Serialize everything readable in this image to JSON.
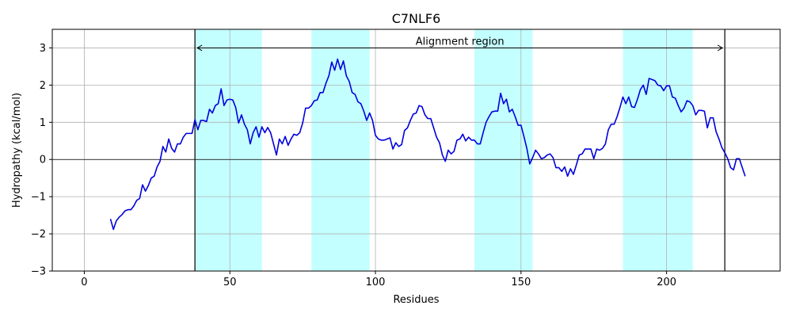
{
  "chart_data": {
    "type": "line",
    "title": "C7NLF6",
    "xlabel": "Residues",
    "ylabel": "Hydropathy (kcal/mol)",
    "xlim": [
      -11,
      239
    ],
    "ylim": [
      -3,
      3.5
    ],
    "xticks": [
      0,
      50,
      100,
      150,
      200
    ],
    "yticks": [
      -3,
      -2,
      -1,
      0,
      1,
      2,
      3
    ],
    "grid": true,
    "colors": {
      "line": "#0000dd",
      "band": "#c4ffff",
      "frame": "#000000",
      "grid": "#b0b0b0"
    },
    "highlight_regions": [
      [
        38,
        61
      ],
      [
        78,
        98
      ],
      [
        134,
        154
      ],
      [
        185,
        209
      ]
    ],
    "alignment": {
      "label": "Alignment region",
      "start": 38,
      "end": 220,
      "y": 3.0
    },
    "series": [
      {
        "x": [
          9,
          10,
          11,
          12,
          13,
          14,
          15,
          16,
          17,
          18,
          19,
          20,
          21,
          22,
          23,
          24,
          25,
          26,
          27,
          28,
          29,
          30,
          31,
          32,
          33,
          34,
          35,
          36,
          37,
          38,
          39,
          40,
          41,
          42,
          43,
          44,
          45,
          46,
          47,
          48,
          49,
          50,
          51,
          52,
          53,
          54,
          55,
          56,
          57,
          58,
          59,
          60,
          61,
          62,
          63,
          64,
          65,
          66,
          67,
          68,
          69,
          70,
          71,
          72,
          73,
          74,
          75,
          76,
          77,
          78,
          79,
          80,
          81,
          82,
          83,
          84,
          85,
          86,
          87,
          88,
          89,
          90,
          91,
          92,
          93,
          94,
          95,
          96,
          97,
          98,
          99,
          100,
          101,
          102,
          103,
          104,
          105,
          106,
          107,
          108,
          109,
          110,
          111,
          112,
          113,
          114,
          115,
          116,
          117,
          118,
          119,
          120,
          121,
          122,
          123,
          124,
          125,
          126,
          127,
          128,
          129,
          130,
          131,
          132,
          133,
          134,
          135,
          136,
          137,
          138,
          139,
          140,
          141,
          142,
          143,
          144,
          145,
          146,
          147,
          148,
          149,
          150,
          151,
          152,
          153,
          154,
          155,
          156,
          157,
          158,
          159,
          160,
          161,
          162,
          163,
          164,
          165,
          166,
          167,
          168,
          169,
          170,
          171,
          172,
          173,
          174,
          175,
          176,
          177,
          178,
          179,
          180,
          181,
          182,
          183,
          184,
          185,
          186,
          187,
          188,
          189,
          190,
          191,
          192,
          193,
          194,
          195,
          196,
          197,
          198,
          199,
          200,
          201,
          202,
          203,
          204,
          205,
          206,
          207,
          208,
          209,
          210,
          211,
          212,
          213,
          214,
          215,
          216,
          217,
          218,
          219,
          220,
          221,
          222,
          223,
          224,
          225,
          226,
          227
        ],
        "values": [
          -1.6,
          -1.88,
          -1.65,
          -1.55,
          -1.48,
          -1.38,
          -1.35,
          -1.35,
          -1.25,
          -1.1,
          -1.05,
          -0.68,
          -0.85,
          -0.7,
          -0.5,
          -0.45,
          -0.2,
          -0.05,
          0.35,
          0.2,
          0.55,
          0.3,
          0.2,
          0.42,
          0.42,
          0.6,
          0.7,
          0.7,
          0.7,
          1.07,
          0.8,
          1.05,
          1.05,
          1.02,
          1.35,
          1.25,
          1.45,
          1.5,
          1.9,
          1.45,
          1.6,
          1.62,
          1.6,
          1.4,
          0.98,
          1.2,
          0.95,
          0.8,
          0.42,
          0.72,
          0.88,
          0.6,
          0.88,
          0.72,
          0.86,
          0.72,
          0.42,
          0.12,
          0.55,
          0.42,
          0.62,
          0.38,
          0.55,
          0.68,
          0.65,
          0.72,
          0.98,
          1.38,
          1.38,
          1.45,
          1.58,
          1.6,
          1.8,
          1.8,
          2.05,
          2.25,
          2.62,
          2.4,
          2.7,
          2.42,
          2.65,
          2.25,
          2.1,
          1.8,
          1.75,
          1.55,
          1.5,
          1.3,
          1.05,
          1.25,
          1.05,
          0.65,
          0.55,
          0.52,
          0.52,
          0.55,
          0.58,
          0.28,
          0.45,
          0.35,
          0.4,
          0.78,
          0.85,
          1.05,
          1.22,
          1.25,
          1.45,
          1.42,
          1.2,
          1.1,
          1.1,
          0.85,
          0.6,
          0.45,
          0.12,
          -0.05,
          0.25,
          0.15,
          0.22,
          0.52,
          0.55,
          0.68,
          0.5,
          0.6,
          0.52,
          0.52,
          0.42,
          0.42,
          0.72,
          1.0,
          1.15,
          1.28,
          1.3,
          1.3,
          1.78,
          1.5,
          1.62,
          1.28,
          1.35,
          1.15,
          0.92,
          0.92,
          0.62,
          0.3,
          -0.12,
          0.05,
          0.25,
          0.15,
          0.02,
          0.05,
          0.12,
          0.15,
          0.05,
          -0.22,
          -0.22,
          -0.32,
          -0.2,
          -0.45,
          -0.25,
          -0.4,
          -0.15,
          0.12,
          0.15,
          0.28,
          0.28,
          0.28,
          0.02,
          0.28,
          0.25,
          0.3,
          0.42,
          0.8,
          0.95,
          0.95,
          1.15,
          1.4,
          1.68,
          1.5,
          1.68,
          1.42,
          1.4,
          1.62,
          1.88,
          2.0,
          1.75,
          2.18,
          2.15,
          2.12,
          2.0,
          1.98,
          1.85,
          1.98,
          1.98,
          1.68,
          1.65,
          1.45,
          1.28,
          1.38,
          1.58,
          1.55,
          1.45,
          1.2,
          1.32,
          1.32,
          1.3,
          0.85,
          1.12,
          1.12,
          0.75,
          0.55,
          0.32,
          0.18,
          0.02,
          -0.22,
          -0.28,
          0.02,
          0.02,
          -0.22,
          -0.45
        ]
      }
    ]
  }
}
